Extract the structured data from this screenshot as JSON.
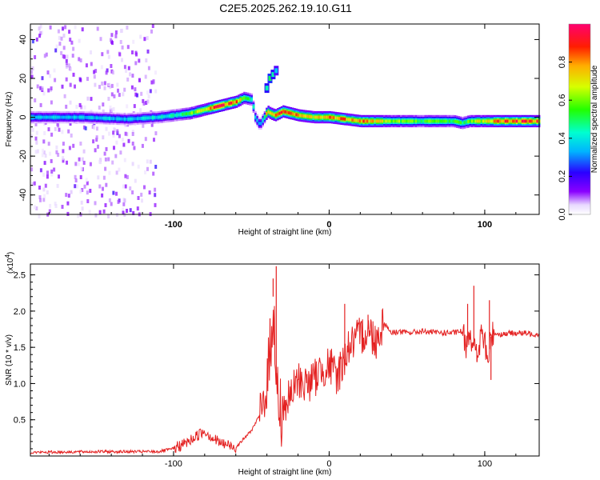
{
  "title": "C2E5.2025.262.19.10.G11",
  "chart_data": [
    {
      "type": "heatmap",
      "xlabel": "Height of straight line (km)",
      "ylabel": "Frequency (Hz)",
      "xlim": [
        -192,
        135
      ],
      "ylim": [
        -50,
        48
      ],
      "xticks": [
        -100,
        0,
        100
      ],
      "xtick_labels": [
        "-100",
        "0",
        "100"
      ],
      "yticks": [
        -40,
        -20,
        0,
        20,
        40
      ],
      "ytick_labels": [
        "-40",
        "-20",
        "0",
        "20",
        "40"
      ],
      "colorbar": {
        "label": "Normalized spectral amplitude",
        "range": [
          0,
          1
        ],
        "ticks": [
          0.0,
          0.2,
          0.4,
          0.6,
          0.8
        ],
        "tick_labels": [
          "0.0",
          "0.2",
          "0.4",
          "0.6",
          "0.8"
        ]
      },
      "ridge": {
        "x": [
          -192,
          -160,
          -130,
          -110,
          -100,
          -90,
          -80,
          -70,
          -60,
          -55,
          -50,
          -48,
          -45,
          -42,
          -40,
          -38,
          -35,
          -30,
          -25,
          -20,
          -10,
          0,
          10,
          20,
          40,
          60,
          80,
          85,
          90,
          100,
          110,
          135
        ],
        "freq": [
          0,
          0,
          -1,
          0,
          1,
          2,
          4,
          6,
          8,
          10,
          9,
          0,
          -4,
          0,
          3,
          2,
          1,
          3,
          2,
          1,
          0,
          0,
          -1,
          -2,
          -2,
          -2,
          -2,
          -3,
          -2,
          -2,
          -2,
          -2
        ],
        "amplitude": [
          0.35,
          0.35,
          0.35,
          0.4,
          0.45,
          0.55,
          0.75,
          0.9,
          0.8,
          0.6,
          0.45,
          0.35,
          0.3,
          0.55,
          0.8,
          0.7,
          0.75,
          0.85,
          0.8,
          0.75,
          0.7,
          0.8,
          0.8,
          0.85,
          0.6,
          0.55,
          0.55,
          0.5,
          0.6,
          0.7,
          0.85,
          0.85
        ]
      },
      "branch": {
        "x": [
          -40,
          -38,
          -36,
          -34
        ],
        "freq": [
          15,
          20,
          22,
          24
        ],
        "amplitude": [
          0.45,
          0.5,
          0.45,
          0.35
        ]
      },
      "noise_region": {
        "x_from": -192,
        "x_to": -112,
        "freq_from": -50,
        "freq_to": 48,
        "amplitude": 0.1
      }
    },
    {
      "type": "line",
      "xlabel": "Height of straight line (km)",
      "ylabel": "SNR (10 * v/v)",
      "multiplier_label": "(x10",
      "multiplier_exp": "4",
      "multiplier_close": ")",
      "xlim": [
        -192,
        135
      ],
      "ylim": [
        0,
        2.65
      ],
      "xticks": [
        -100,
        0,
        100
      ],
      "xtick_labels": [
        "-100",
        "0",
        "100"
      ],
      "yticks": [
        0.5,
        1.0,
        1.5,
        2.0,
        2.5
      ],
      "ytick_labels": [
        "0.5",
        "1.0",
        "1.5",
        "2.0",
        "2.5"
      ],
      "color": "#e42121",
      "series": [
        {
          "name": "SNR",
          "x": [
            -192,
            -150,
            -110,
            -100,
            -90,
            -85,
            -80,
            -75,
            -70,
            -60,
            -50,
            -45,
            -40,
            -38,
            -36,
            -34,
            -32,
            -30,
            -25,
            -20,
            -15,
            -10,
            -5,
            0,
            5,
            10,
            12,
            15,
            20,
            25,
            30,
            35,
            40,
            45,
            50,
            60,
            70,
            80,
            85,
            88,
            90,
            92,
            95,
            98,
            100,
            102,
            104,
            106,
            110,
            120,
            135
          ],
          "y": [
            0.05,
            0.06,
            0.06,
            0.1,
            0.2,
            0.28,
            0.35,
            0.25,
            0.18,
            0.12,
            0.35,
            0.55,
            0.9,
            1.4,
            2.2,
            1.0,
            0.6,
            0.65,
            0.8,
            1.05,
            1.0,
            1.05,
            1.2,
            1.25,
            1.1,
            1.35,
            1.5,
            1.55,
            1.65,
            1.75,
            1.6,
            1.85,
            1.7,
            1.72,
            1.7,
            1.72,
            1.7,
            1.7,
            1.72,
            1.55,
            1.75,
            1.6,
            1.35,
            1.7,
            1.55,
            1.3,
            1.65,
            1.7,
            1.68,
            1.7,
            1.68
          ]
        }
      ],
      "spikes": [
        {
          "x": -34,
          "y": 2.62
        },
        {
          "x": -36,
          "y": 2.45
        },
        {
          "x": -38,
          "y": 1.9
        },
        {
          "x": 10,
          "y": 2.1
        },
        {
          "x": 93,
          "y": 2.35
        },
        {
          "x": 89,
          "y": 2.1
        },
        {
          "x": 103,
          "y": 2.15
        },
        {
          "x": 104,
          "y": 1.05
        },
        {
          "x": 95,
          "y": 1.3
        },
        {
          "x": 25,
          "y": 1.95
        }
      ]
    }
  ]
}
